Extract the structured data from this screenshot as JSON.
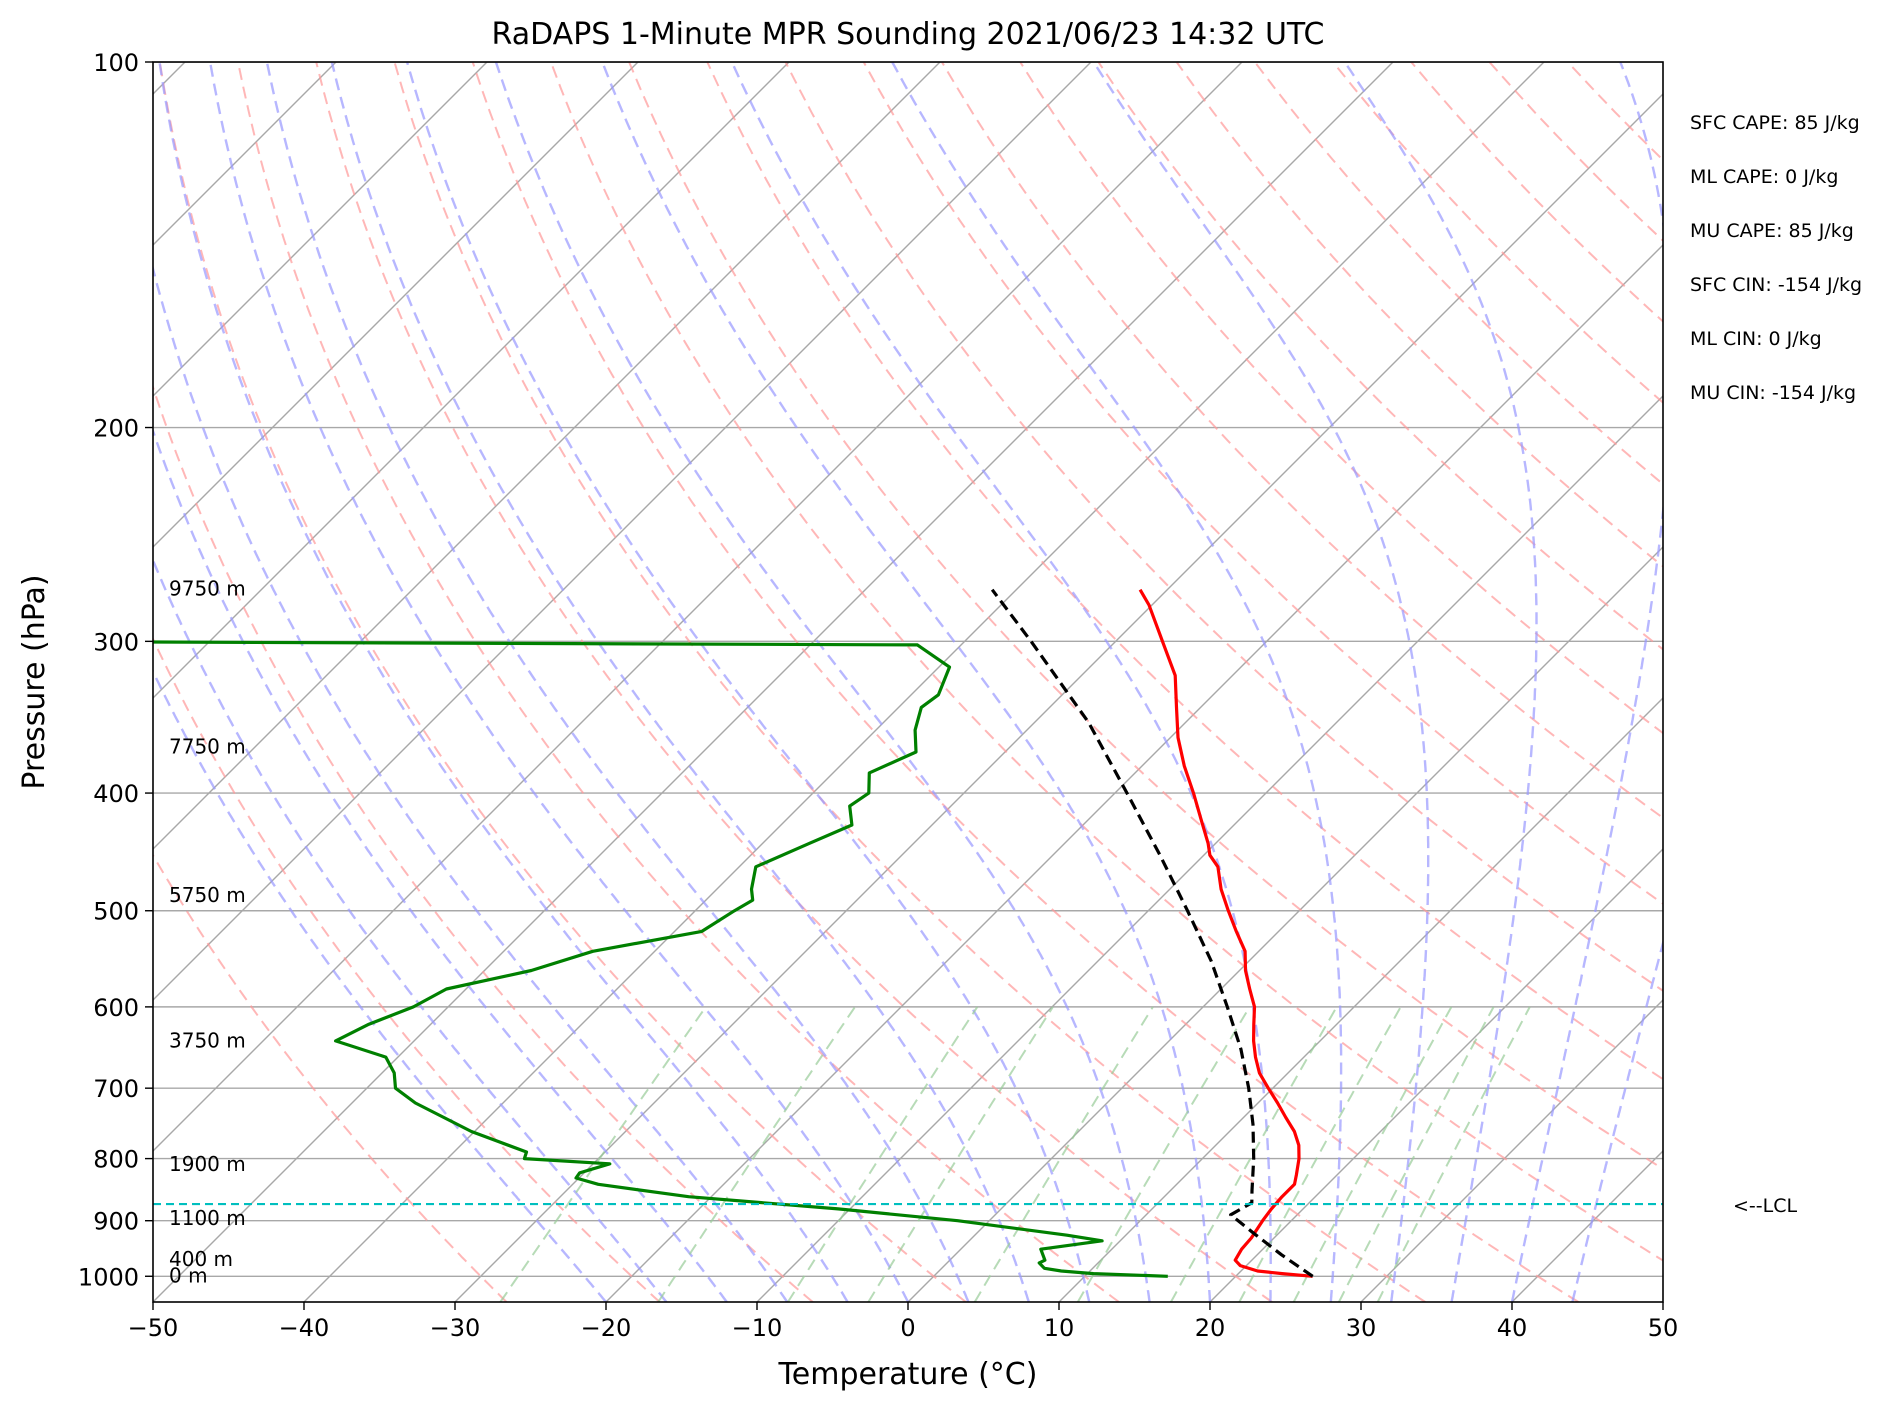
{
  "chart_data": {
    "type": "line",
    "diagram": "skew-T log-P",
    "title": "RaDAPS 1-Minute MPR Sounding 2021/06/23 14:32 UTC",
    "xlabel": "Temperature (°C)",
    "ylabel": "Pressure (hPa)",
    "xlim": [
      -50,
      50
    ],
    "ylim": [
      1050,
      100
    ],
    "y_scale": "log",
    "grid": true,
    "x_ticks": [
      "−50",
      "−40",
      "−30",
      "−20",
      "−10",
      "0",
      "10",
      "20",
      "30",
      "40",
      "50"
    ],
    "x_tick_values": [
      -50,
      -40,
      -30,
      -20,
      -10,
      0,
      10,
      20,
      30,
      40,
      50
    ],
    "y_ticks": [
      "100",
      "200",
      "300",
      "400",
      "500",
      "600",
      "700",
      "800",
      "900",
      "1000"
    ],
    "y_tick_values": [
      100,
      200,
      300,
      400,
      500,
      600,
      700,
      800,
      900,
      1000
    ],
    "series": [
      {
        "role": "temperature",
        "color": "#ff0000",
        "style": "solid",
        "points": [
          [
            1000,
            25.1
          ],
          [
            995,
            22.9
          ],
          [
            990,
            21.1
          ],
          [
            980,
            19.6
          ],
          [
            970,
            18.9
          ],
          [
            950,
            18.6
          ],
          [
            930,
            18.5
          ],
          [
            900,
            18.1
          ],
          [
            880,
            17.9
          ],
          [
            860,
            17.8
          ],
          [
            840,
            17.8
          ],
          [
            825,
            17.3
          ],
          [
            800,
            16.4
          ],
          [
            780,
            15.5
          ],
          [
            760,
            14.3
          ],
          [
            740,
            12.8
          ],
          [
            720,
            11.3
          ],
          [
            700,
            9.7
          ],
          [
            680,
            8.1
          ],
          [
            660,
            6.8
          ],
          [
            640,
            5.6
          ],
          [
            620,
            4.5
          ],
          [
            600,
            3.4
          ],
          [
            580,
            1.9
          ],
          [
            560,
            0.4
          ],
          [
            540,
            -0.9
          ],
          [
            520,
            -2.8
          ],
          [
            500,
            -4.7
          ],
          [
            480,
            -6.6
          ],
          [
            460,
            -8.3
          ],
          [
            450,
            -9.6
          ],
          [
            440,
            -10.5
          ],
          [
            420,
            -12.6
          ],
          [
            400,
            -14.8
          ],
          [
            380,
            -17.2
          ],
          [
            360,
            -19.5
          ],
          [
            340,
            -21.6
          ],
          [
            320,
            -23.8
          ],
          [
            300,
            -26.9
          ],
          [
            280,
            -30.2
          ],
          [
            272,
            -31.8
          ]
        ]
      },
      {
        "role": "dewpoint",
        "color": "#008000",
        "style": "solid",
        "points": [
          [
            1000,
            15.5
          ],
          [
            995,
            10.4
          ],
          [
            990,
            8.1
          ],
          [
            985,
            6.8
          ],
          [
            975,
            6.1
          ],
          [
            970,
            6.3
          ],
          [
            950,
            5.3
          ],
          [
            935,
            8.8
          ],
          [
            925,
            6.1
          ],
          [
            900,
            -2.1
          ],
          [
            880,
            -10.8
          ],
          [
            860,
            -21.5
          ],
          [
            840,
            -28.3
          ],
          [
            830,
            -30.2
          ],
          [
            822,
            -30.3
          ],
          [
            808,
            -28.9
          ],
          [
            800,
            -34.9
          ],
          [
            790,
            -35.2
          ],
          [
            760,
            -40.2
          ],
          [
            720,
            -45.8
          ],
          [
            700,
            -48.1
          ],
          [
            680,
            -49.2
          ],
          [
            660,
            -50.8
          ],
          [
            640,
            -55.2
          ],
          [
            620,
            -54.1
          ],
          [
            600,
            -52.3
          ],
          [
            580,
            -51.3
          ],
          [
            560,
            -46.9
          ],
          [
            540,
            -44.1
          ],
          [
            520,
            -38.2
          ],
          [
            500,
            -37.4
          ],
          [
            490,
            -36.9
          ],
          [
            480,
            -37.7
          ],
          [
            460,
            -38.9
          ],
          [
            440,
            -36.9
          ],
          [
            425,
            -35.3
          ],
          [
            410,
            -36.7
          ],
          [
            400,
            -36.3
          ],
          [
            385,
            -37.6
          ],
          [
            370,
            -35.9
          ],
          [
            355,
            -37.4
          ],
          [
            340,
            -38.5
          ],
          [
            332,
            -38.2
          ],
          [
            315,
            -39.3
          ],
          [
            302,
            -42.9
          ],
          [
            300,
            -105
          ],
          [
            299,
            -120
          ]
        ]
      },
      {
        "role": "parcel profile",
        "color": "#000000",
        "style": "dashed",
        "points": [
          [
            1000,
            25.1
          ],
          [
            960,
            21.6
          ],
          [
            920,
            18.2
          ],
          [
            890,
            15.6
          ],
          [
            870,
            16.2
          ],
          [
            850,
            15.4
          ],
          [
            800,
            13.4
          ],
          [
            750,
            11.1
          ],
          [
            700,
            8.4
          ],
          [
            650,
            5.3
          ],
          [
            600,
            1.6
          ],
          [
            550,
            -2.5
          ],
          [
            500,
            -7.4
          ],
          [
            450,
            -12.9
          ],
          [
            400,
            -19.2
          ],
          [
            350,
            -26.4
          ],
          [
            300,
            -35.6
          ],
          [
            272,
            -41.6
          ]
        ]
      }
    ],
    "lcl_pressure_hpa": 872,
    "lcl_label": "<--LCL",
    "lcl_color": "#00bfbf",
    "height_labels": [
      {
        "label": "9750 m",
        "pressure": 272
      },
      {
        "label": "7750 m",
        "pressure": 367
      },
      {
        "label": "5750 m",
        "pressure": 486
      },
      {
        "label": "3750 m",
        "pressure": 641
      },
      {
        "label": "1900 m",
        "pressure": 810
      },
      {
        "label": "1100 m",
        "pressure": 897
      },
      {
        "label": "400 m",
        "pressure": 970
      },
      {
        "label": "0 m",
        "pressure": 1000
      }
    ],
    "stats": [
      "SFC CAPE: 85 J/kg",
      "ML CAPE: 0 J/kg",
      "MU CAPE: 85 J/kg",
      "SFC CIN: -154 J/kg",
      "ML CIN: 0 J/kg",
      "MU CIN: -154 J/kg"
    ],
    "background_lines": {
      "isotherms": {
        "color": "#a8a8a8",
        "style": "solid"
      },
      "dry_adiabats": {
        "color": "#ff9999",
        "style": "dashed"
      },
      "moist_adiabats": {
        "color": "#9999ff",
        "style": "dashed"
      },
      "mixing_ratio_lines": {
        "color": "#99cc99",
        "style": "dashed"
      }
    }
  }
}
